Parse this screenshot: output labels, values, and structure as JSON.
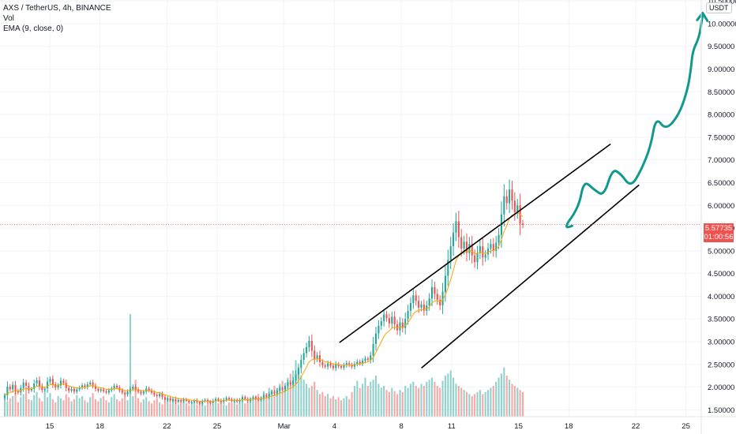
{
  "legend": {
    "symbol_line": "AXS / TetherUS, 4h, BINANCE",
    "volume_label": "Vol",
    "ema_label": "EMA (9, close, 0)"
  },
  "axis": {
    "currency": "USDT"
  },
  "price_tag": {
    "price": "5.57735",
    "countdown": "01:00:56"
  },
  "colors": {
    "up": "#26a69a",
    "down": "#ef5350",
    "ema": "#f7a600",
    "drawing": "#11998e",
    "channel": "#000000",
    "grid": "#f0f3fa"
  },
  "chart_data": {
    "type": "candlestick",
    "ylim": [
      1.35,
      10.52
    ],
    "yticks": [
      1.5,
      2.0,
      2.5,
      3.0,
      3.5,
      4.0,
      4.5,
      5.0,
      5.5,
      6.0,
      6.5,
      7.0,
      7.5,
      8.0,
      8.5,
      9.0,
      9.5,
      10.0,
      10.5
    ],
    "ytick_labels": [
      "1.50000",
      "2.00000",
      "2.50000",
      "3.00000",
      "3.50000",
      "4.00000",
      "4.50000",
      "5.00000",
      "5.50000",
      "6.00000",
      "6.50000",
      "7.00000",
      "7.50000",
      "8.00000",
      "8.50000",
      "9.00000",
      "9.50000",
      "10.00000",
      "10.50000"
    ],
    "x_ticks": [
      {
        "label": "15",
        "day": 15
      },
      {
        "label": "18",
        "day": 18
      },
      {
        "label": "22",
        "day": 22
      },
      {
        "label": "25",
        "day": 25
      },
      {
        "label": "Mar",
        "day": 29
      },
      {
        "label": "4",
        "day": 32
      },
      {
        "label": "8",
        "day": 36
      },
      {
        "label": "11",
        "day": 39
      },
      {
        "label": "15",
        "day": 43
      },
      {
        "label": "18",
        "day": 46
      },
      {
        "label": "22",
        "day": 50
      },
      {
        "label": "25",
        "day": 53
      }
    ],
    "last_price": 5.57735,
    "candles_close": [
      1.82,
      2.01,
      1.95,
      2.05,
      1.92,
      1.88,
      1.98,
      2.1,
      2.03,
      1.93,
      1.96,
      2.08,
      2.15,
      2.02,
      1.94,
      1.97,
      2.12,
      2.18,
      2.06,
      1.99,
      2.04,
      2.14,
      2.09,
      1.98,
      1.92,
      1.96,
      1.9,
      1.95,
      1.99,
      2.04,
      2.0,
      2.06,
      2.1,
      2.03,
      1.96,
      1.92,
      1.95,
      1.91,
      1.88,
      1.93,
      1.97,
      2.03,
      1.99,
      1.93,
      1.88,
      1.84,
      1.9,
      1.96,
      2.01,
      1.95,
      1.9,
      1.86,
      1.9,
      1.97,
      1.93,
      1.88,
      1.83,
      1.8,
      1.85,
      1.78,
      1.72,
      1.76,
      1.7,
      1.74,
      1.68,
      1.72,
      1.69,
      1.73,
      1.7,
      1.66,
      1.68,
      1.71,
      1.67,
      1.64,
      1.69,
      1.72,
      1.68,
      1.65,
      1.7,
      1.74,
      1.71,
      1.67,
      1.72,
      1.76,
      1.73,
      1.69,
      1.72,
      1.68,
      1.72,
      1.78,
      1.74,
      1.7,
      1.74,
      1.78,
      1.75,
      1.72,
      1.76,
      1.82,
      1.79,
      1.85,
      1.9,
      1.86,
      1.92,
      1.98,
      1.95,
      2.03,
      2.1,
      2.06,
      2.15,
      2.28,
      2.42,
      2.6,
      2.75,
      2.88,
      3.02,
      2.8,
      2.62,
      2.7,
      2.55,
      2.48,
      2.45,
      2.52,
      2.47,
      2.42,
      2.5,
      2.46,
      2.43,
      2.48,
      2.53,
      2.49,
      2.45,
      2.51,
      2.56,
      2.52,
      2.58,
      2.63,
      2.6,
      2.7,
      2.95,
      3.18,
      3.35,
      3.45,
      3.6,
      3.52,
      3.4,
      3.55,
      3.38,
      3.25,
      3.42,
      3.3,
      3.5,
      3.68,
      3.85,
      4.02,
      3.9,
      3.75,
      3.82,
      3.68,
      3.8,
      3.95,
      4.2,
      4.05,
      3.92,
      3.8,
      4.1,
      4.45,
      4.8,
      5.1,
      5.4,
      5.65,
      5.3,
      5.05,
      5.2,
      4.95,
      5.15,
      4.9,
      4.75,
      4.95,
      5.1,
      4.85,
      4.92,
      5.05,
      5.15,
      5.0,
      5.18,
      5.35,
      5.8,
      6.2,
      6.05,
      6.35,
      6.1,
      5.85,
      6.0,
      5.6,
      5.57735
    ],
    "volume_max": 100,
    "volumes": [
      22,
      15,
      18,
      20,
      25,
      14,
      19,
      22,
      28,
      17,
      16,
      21,
      24,
      18,
      15,
      26,
      19,
      23,
      17,
      14,
      20,
      18,
      16,
      22,
      19,
      15,
      17,
      21,
      18,
      20,
      16,
      14,
      19,
      23,
      17,
      15,
      18,
      20,
      16,
      14,
      19,
      22,
      17,
      15,
      18,
      21,
      16,
      100,
      20,
      36,
      18,
      14,
      17,
      19,
      15,
      13,
      16,
      18,
      14,
      12,
      15,
      17,
      13,
      16,
      14,
      12,
      15,
      17,
      13,
      11,
      14,
      16,
      12,
      15,
      13,
      11,
      14,
      16,
      12,
      14,
      13,
      15,
      12,
      11,
      14,
      13,
      15,
      12,
      14,
      16,
      13,
      15,
      18,
      16,
      20,
      22,
      19,
      25,
      23,
      28,
      26,
      30,
      28,
      32,
      35,
      30,
      38,
      42,
      45,
      55,
      48,
      40,
      36,
      32,
      28,
      30,
      34,
      26,
      22,
      24,
      20,
      22,
      18,
      20,
      17,
      19,
      16,
      18,
      20,
      17,
      24,
      30,
      35,
      28,
      32,
      38,
      30,
      34,
      36,
      40,
      32,
      28,
      30,
      26,
      24,
      28,
      25,
      22,
      26,
      24,
      30,
      28,
      32,
      34,
      30,
      28,
      32,
      30,
      34,
      36,
      38,
      34,
      30,
      28,
      35,
      40,
      42,
      45,
      38,
      32,
      30,
      28,
      26,
      24,
      22,
      20,
      22,
      24,
      26,
      22,
      24,
      26,
      28,
      30,
      34,
      38,
      42,
      48,
      40,
      36,
      32,
      30,
      28,
      26,
      24
    ],
    "channel_upper": [
      {
        "day": 32.3,
        "price": 2.98
      },
      {
        "day": 48.5,
        "price": 7.35
      }
    ],
    "channel_lower": [
      {
        "day": 37.2,
        "price": 2.42
      },
      {
        "day": 50.2,
        "price": 6.45
      }
    ],
    "projection_path": [
      {
        "day": 46.2,
        "price": 5.55
      },
      {
        "day": 45.6,
        "price": 5.45
      },
      {
        "day": 46.6,
        "price": 5.95
      },
      {
        "day": 46.9,
        "price": 6.55
      },
      {
        "day": 47.5,
        "price": 6.35
      },
      {
        "day": 48.1,
        "price": 6.2
      },
      {
        "day": 48.6,
        "price": 6.8
      },
      {
        "day": 49.1,
        "price": 6.7
      },
      {
        "day": 49.7,
        "price": 6.4
      },
      {
        "day": 50.3,
        "price": 6.75
      },
      {
        "day": 50.9,
        "price": 7.3
      },
      {
        "day": 51.2,
        "price": 7.95
      },
      {
        "day": 51.8,
        "price": 7.65
      },
      {
        "day": 52.6,
        "price": 8.0
      },
      {
        "day": 53.1,
        "price": 8.55
      },
      {
        "day": 53.3,
        "price": 9.0
      },
      {
        "day": 53.4,
        "price": 9.4
      },
      {
        "day": 53.8,
        "price": 9.7
      },
      {
        "day": 54.0,
        "price": 10.2
      }
    ]
  }
}
